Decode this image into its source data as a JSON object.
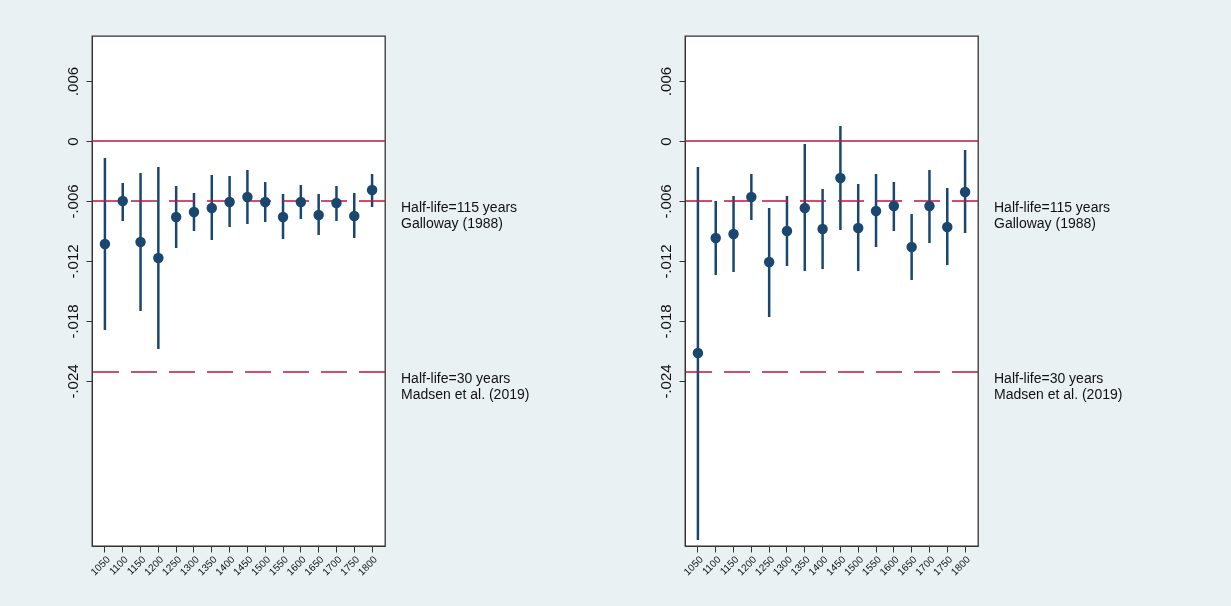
{
  "chart_data": [
    {
      "type": "scatter",
      "categories": [
        "1050",
        "1100",
        "1150",
        "1200",
        "1250",
        "1300",
        "1350",
        "1400",
        "1450",
        "1500",
        "1550",
        "1600",
        "1650",
        "1700",
        "1750",
        "1800"
      ],
      "values": [
        -0.0103,
        -0.006,
        -0.0101,
        -0.0117,
        -0.0076,
        -0.0071,
        -0.0067,
        -0.0061,
        -0.0056,
        -0.0061,
        -0.0076,
        -0.0061,
        -0.0074,
        -0.0062,
        -0.0075,
        -0.0049
      ],
      "errors": [
        [
          -0.0189,
          -0.0017
        ],
        [
          -0.008,
          -0.0042
        ],
        [
          -0.017,
          -0.0032
        ],
        [
          -0.0208,
          -0.0026
        ],
        [
          -0.0107,
          -0.0045
        ],
        [
          -0.009,
          -0.0052
        ],
        [
          -0.0099,
          -0.0034
        ],
        [
          -0.0086,
          -0.0035
        ],
        [
          -0.0083,
          -0.0029
        ],
        [
          -0.0081,
          -0.0041
        ],
        [
          -0.0098,
          -0.0053
        ],
        [
          -0.0078,
          -0.0044
        ],
        [
          -0.0094,
          -0.0053
        ],
        [
          -0.008,
          -0.0045
        ],
        [
          -0.0097,
          -0.0052
        ],
        [
          -0.0066,
          -0.0033
        ]
      ],
      "color": "#1a476f",
      "marker": "circle",
      "ylim": [
        -0.0405,
        0.0105
      ],
      "yticks": [
        {
          "value": 0.006,
          "label": ".006"
        },
        0,
        {
          "value": -0.006,
          "label": "-.006"
        },
        {
          "value": -0.012,
          "label": "-.012"
        },
        {
          "value": -0.018,
          "label": "-.018"
        },
        {
          "value": -0.024,
          "label": "-.024"
        }
      ],
      "annotations": [
        "Half-life=115 years\nGalloway (1988)",
        "Half-life=30 years\nMadsen et al. (2019)"
      ],
      "ref_lines": [
        {
          "axis": "y",
          "value": 0,
          "color": "#c0143c",
          "line_style": "solid"
        },
        {
          "axis": "y",
          "value": -0.006,
          "color": "#c0143c",
          "line_style": "dashed"
        },
        {
          "axis": "y",
          "value": -0.0231,
          "color": "#c0143c",
          "line_style": "dashed"
        }
      ]
    },
    {
      "type": "scatter",
      "categories": [
        "1050",
        "1100",
        "1150",
        "1200",
        "1250",
        "1300",
        "1350",
        "1400",
        "1450",
        "1500",
        "1550",
        "1600",
        "1650",
        "1700",
        "1750",
        "1800"
      ],
      "values": [
        -0.0212,
        -0.0097,
        -0.0093,
        -0.0056,
        -0.0121,
        -0.009,
        -0.0067,
        -0.0088,
        -0.0037,
        -0.0087,
        -0.007,
        -0.0065,
        -0.0106,
        -0.0065,
        -0.0086,
        -0.0051
      ],
      "errors": [
        [
          -0.0399,
          -0.0026
        ],
        [
          -0.0134,
          -0.006
        ],
        [
          -0.0131,
          -0.0055
        ],
        [
          -0.0079,
          -0.0033
        ],
        [
          -0.0176,
          -0.0067
        ],
        [
          -0.0125,
          -0.0055
        ],
        [
          -0.013,
          -0.0003
        ],
        [
          -0.0128,
          -0.0048
        ],
        [
          -0.0089,
          0.0015
        ],
        [
          -0.013,
          -0.0043
        ],
        [
          -0.0106,
          -0.0033
        ],
        [
          -0.009,
          -0.0041
        ],
        [
          -0.0139,
          -0.0073
        ],
        [
          -0.0102,
          -0.0029
        ],
        [
          -0.0124,
          -0.0047
        ],
        [
          -0.0092,
          -0.0009
        ]
      ],
      "color": "#1a476f",
      "marker": "circle",
      "ylim": [
        -0.0405,
        0.0105
      ],
      "yticks": [
        {
          "value": 0.006,
          "label": ".006"
        },
        0,
        {
          "value": -0.006,
          "label": "-.006"
        },
        {
          "value": -0.012,
          "label": "-.012"
        },
        {
          "value": -0.018,
          "label": "-.018"
        },
        {
          "value": -0.024,
          "label": "-.024"
        }
      ],
      "annotations": [
        "Half-life=115 years\nGalloway (1988)",
        "Half-life=30 years\nMadsen et al. (2019)"
      ],
      "ref_lines": [
        {
          "axis": "y",
          "value": 0,
          "color": "#c0143c",
          "line_style": "solid"
        },
        {
          "axis": "y",
          "value": -0.006,
          "color": "#c0143c",
          "line_style": "dashed"
        },
        {
          "axis": "y",
          "value": -0.0231,
          "color": "#c0143c",
          "line_style": "dashed"
        }
      ]
    }
  ]
}
